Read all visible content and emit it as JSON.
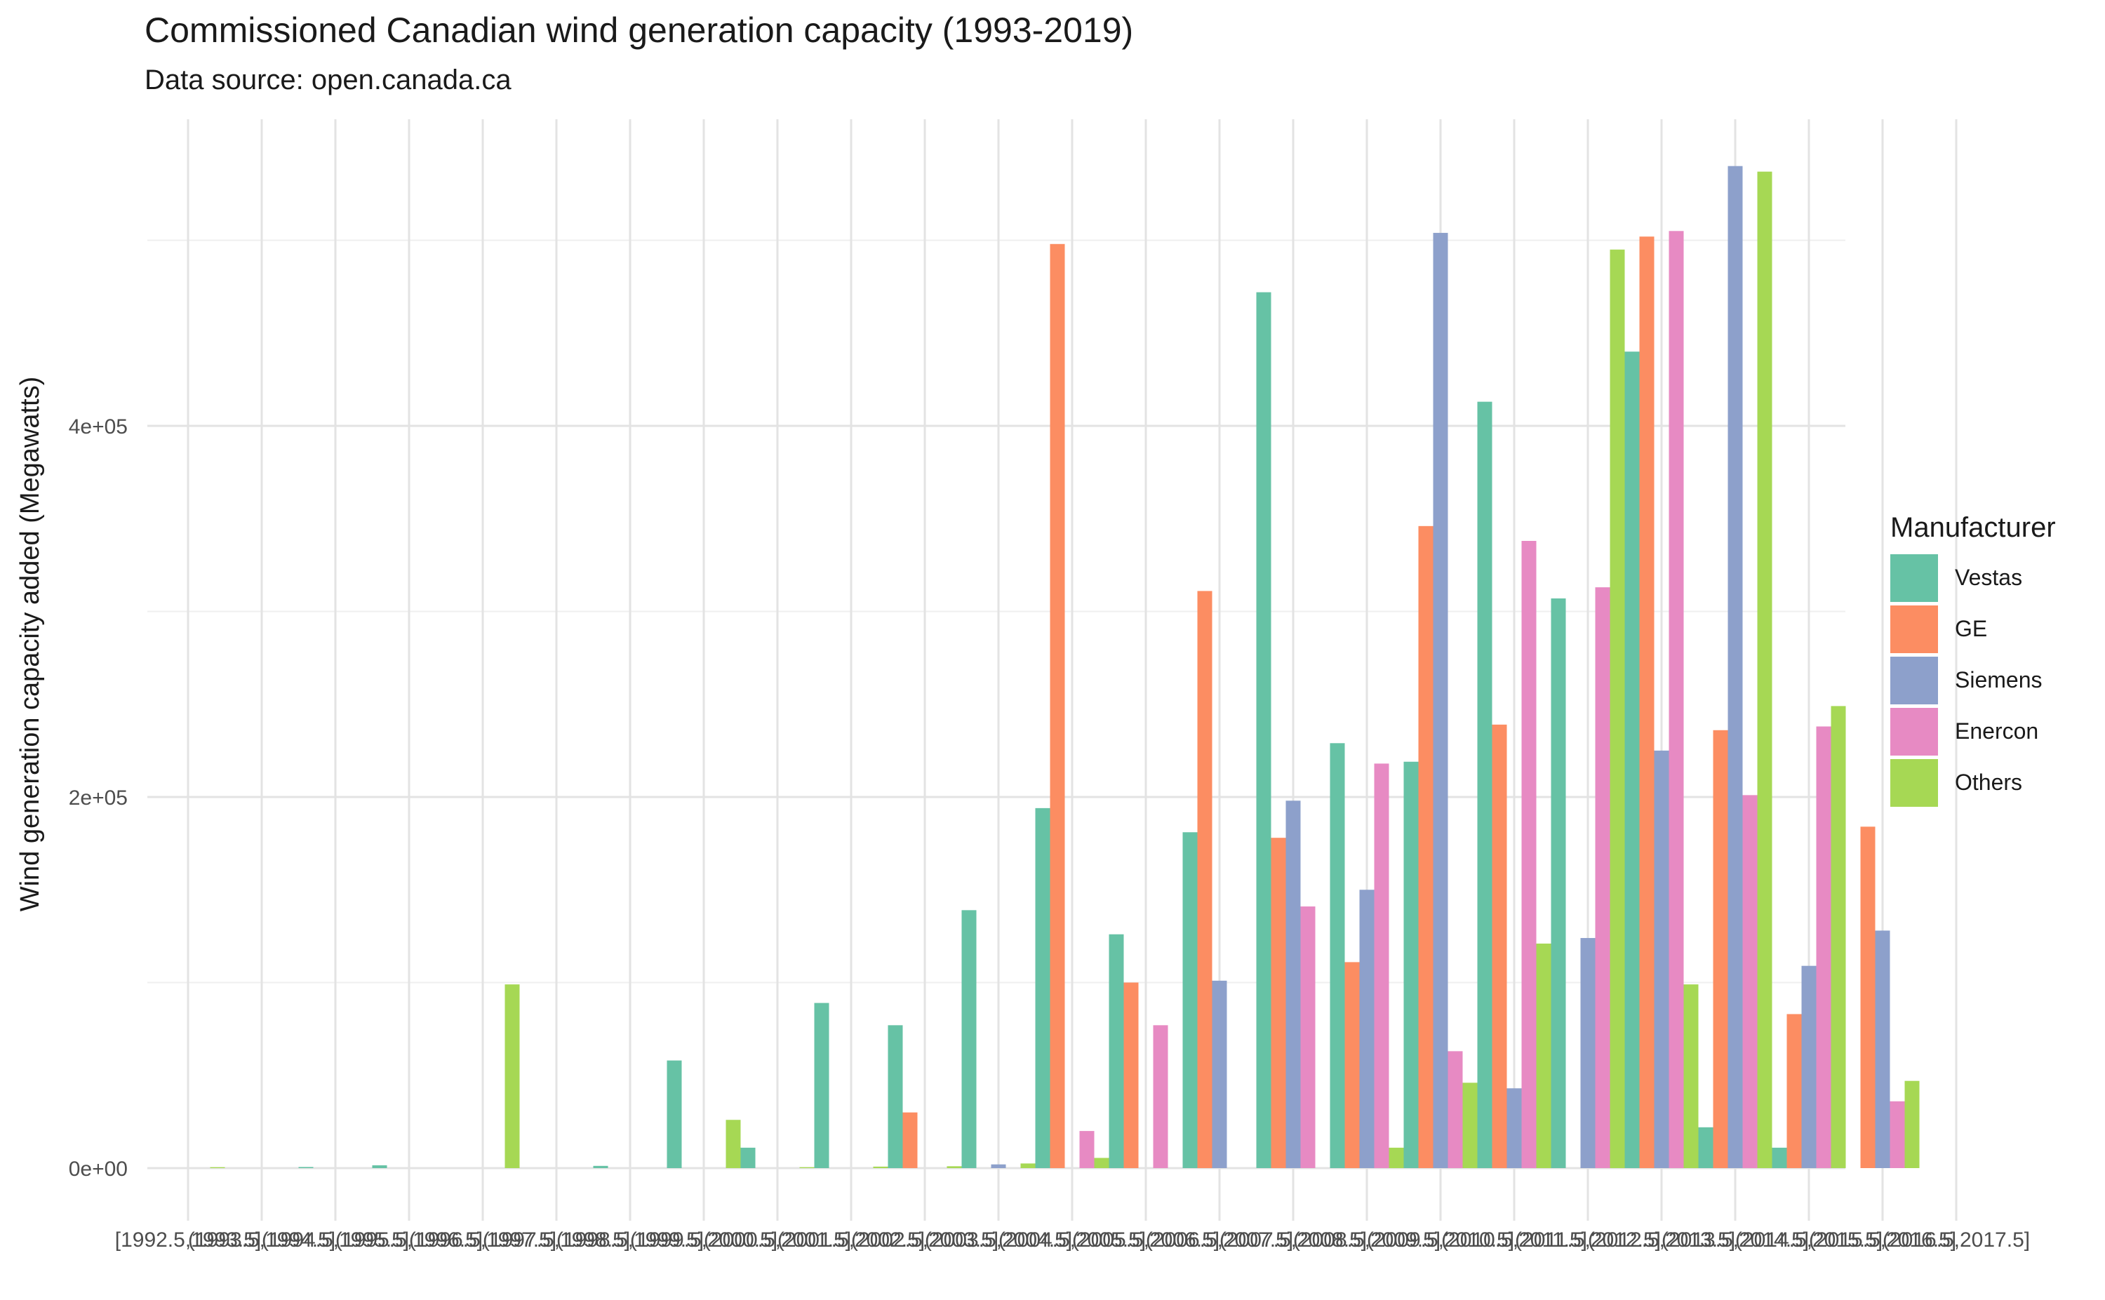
{
  "chart_data": {
    "type": "bar",
    "title": "Commissioned Canadian wind generation capacity (1993-2019)",
    "subtitle": "Data source: open.canada.ca",
    "xlabel": "",
    "ylabel": "Wind generation capacity added (Megawatts)",
    "ylim": [
      -30000,
      560000
    ],
    "yticks": [
      0,
      200000,
      400000
    ],
    "ytick_labels": [
      "0e+00",
      "2e+05",
      "4e+05"
    ],
    "grid": true,
    "legend_title": "Manufacturer",
    "legend_position": "right",
    "categories": [
      "[1992.5,1993.5]",
      "(1993.5,1994.5]",
      "(1994.5,1995.5]",
      "(1995.5,1996.5]",
      "(1996.5,1997.5]",
      "(1997.5,1998.5]",
      "(1998.5,1999.5]",
      "(1999.5,2000.5]",
      "(2000.5,2001.5]",
      "(2001.5,2002.5]",
      "(2002.5,2003.5]",
      "(2003.5,2004.5]",
      "(2004.5,2005.5]",
      "(2005.5,2006.5]",
      "(2006.5,2007.5]",
      "(2007.5,2008.5]",
      "(2008.5,2009.5]",
      "(2009.5,2010.5]",
      "(2010.5,2011.5]",
      "(2011.5,2012.5]",
      "(2012.5,2013.5]",
      "(2013.5,2014.5]",
      "(2014.5,2015.5]",
      "(2015.5,2016.5]",
      "(2016.5,2017.5]"
    ],
    "series": [
      {
        "name": "Vestas",
        "color": "#66c2a5",
        "values": [
          0,
          0,
          600,
          1500,
          0,
          0,
          1200,
          58000,
          11000,
          89000,
          77000,
          139000,
          194000,
          126000,
          181000,
          472000,
          229000,
          219000,
          413000,
          307000,
          440000,
          22000,
          11000,
          0,
          0
        ]
      },
      {
        "name": "GE",
        "color": "#fc8d62",
        "values": [
          0,
          0,
          0,
          0,
          0,
          0,
          0,
          0,
          0,
          0,
          30000,
          0,
          498000,
          100000,
          311000,
          178000,
          111000,
          346000,
          239000,
          0,
          502000,
          236000,
          83000,
          184000,
          0
        ]
      },
      {
        "name": "Siemens",
        "color": "#8da0cb",
        "values": [
          0,
          0,
          0,
          0,
          0,
          0,
          0,
          0,
          0,
          0,
          0,
          2000,
          0,
          0,
          101000,
          198000,
          150000,
          504000,
          43000,
          124000,
          225000,
          540000,
          109000,
          128000,
          0
        ]
      },
      {
        "name": "Enercon",
        "color": "#e78ac3",
        "values": [
          0,
          0,
          0,
          0,
          0,
          0,
          0,
          0,
          0,
          0,
          0,
          0,
          20000,
          77000,
          0,
          141000,
          218000,
          63000,
          338000,
          313000,
          505000,
          201000,
          238000,
          36000,
          0
        ]
      },
      {
        "name": "Others",
        "color": "#a6d854",
        "values": [
          500,
          0,
          0,
          0,
          99000,
          0,
          0,
          26000,
          500,
          800,
          1000,
          2500,
          5500,
          0,
          0,
          0,
          11000,
          46000,
          121000,
          495000,
          99000,
          537000,
          249000,
          47000,
          0
        ]
      }
    ]
  }
}
